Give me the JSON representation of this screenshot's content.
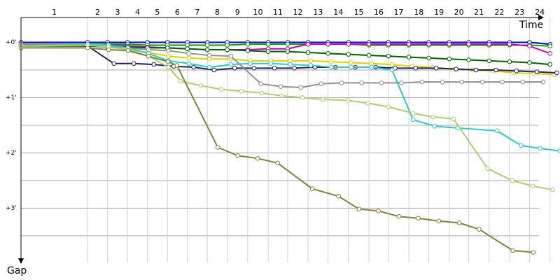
{
  "chart_data": {
    "type": "line",
    "x_axis_label": "Time",
    "y_axis_label": "Gap",
    "laps": [
      "1",
      "2",
      "3",
      "4",
      "5",
      "6",
      "7",
      "8",
      "9",
      "10",
      "11",
      "12",
      "13",
      "14",
      "15",
      "16",
      "17",
      "18",
      "19",
      "20",
      "21",
      "22",
      "23",
      "24"
    ],
    "lap_ends": [
      0,
      127,
      165,
      203,
      241,
      279,
      317,
      355,
      393,
      432,
      471,
      508,
      547,
      585,
      624,
      663,
      700,
      739,
      777,
      816,
      853,
      892,
      931,
      969,
      1008
    ],
    "xlim": [
      0,
      1027
    ],
    "ylim": [
      -27,
      239
    ],
    "yticks": [
      {
        "value": 0,
        "label": "+0'"
      },
      {
        "value": 60,
        "label": "+1'"
      },
      {
        "value": 120,
        "label": "+2'"
      },
      {
        "value": 180,
        "label": "+3'"
      }
    ],
    "ygrid": [
      0,
      30,
      60,
      90,
      120,
      150,
      180,
      210
    ],
    "series": [
      {
        "color": "#0000c0",
        "x": [
          0,
          127,
          165,
          203,
          241,
          279,
          317,
          355,
          393,
          432,
          471,
          508,
          547,
          585,
          624,
          663,
          700,
          739,
          777,
          816,
          853,
          892,
          931,
          969,
          1008
        ],
        "values": [
          0,
          0,
          0,
          0,
          0,
          0,
          0,
          0,
          0,
          0,
          0,
          0,
          0,
          0,
          0,
          0,
          0,
          0,
          0,
          0,
          0,
          0,
          0,
          0,
          2
        ]
      },
      {
        "color": "#00a000",
        "x": [
          0,
          127,
          165,
          203,
          241,
          279,
          317,
          355,
          393,
          432,
          471,
          508,
          547,
          585,
          624,
          663,
          700,
          739,
          777,
          816,
          853,
          892,
          931,
          969,
          1008
        ],
        "values": [
          2,
          2,
          2,
          2,
          3,
          3,
          3,
          3,
          3,
          2,
          2,
          2,
          2,
          2,
          2,
          3,
          3,
          3,
          3,
          3,
          3,
          3,
          3,
          3,
          4
        ]
      },
      {
        "color": "#c000c0",
        "x": [
          0,
          127,
          165,
          203,
          241,
          279,
          317,
          355,
          393,
          432,
          471,
          508,
          547,
          585,
          624,
          663,
          700,
          739,
          777,
          816,
          853,
          892,
          931,
          969,
          1008
        ],
        "values": [
          2,
          3,
          3,
          4,
          5,
          6,
          7,
          8,
          8,
          8,
          7,
          7,
          2,
          2,
          2,
          2,
          2,
          2,
          2,
          2,
          2,
          2,
          2,
          4,
          12
        ]
      },
      {
        "color": "#006000",
        "x": [
          0,
          127,
          165,
          203,
          241,
          279,
          317,
          355,
          393,
          432,
          471,
          508,
          547,
          585,
          624,
          663,
          700,
          739,
          777,
          816,
          853,
          892,
          931,
          969,
          1008
        ],
        "values": [
          4,
          4,
          5,
          5,
          6,
          6,
          7,
          8,
          8,
          9,
          10,
          10,
          11,
          12,
          13,
          14,
          15,
          16,
          17,
          18,
          19,
          20,
          21,
          22,
          24
        ]
      },
      {
        "color": "#e0d000",
        "x": [
          0,
          127,
          167,
          204,
          243,
          281,
          320,
          359,
          400,
          437,
          476,
          513,
          552,
          591,
          629,
          668,
          707,
          745,
          784,
          823,
          861,
          900,
          939,
          977,
          1016
        ],
        "values": [
          3,
          3,
          5,
          8,
          11,
          15,
          17,
          18,
          18,
          20,
          20,
          20,
          20,
          21,
          22,
          23,
          24,
          26,
          27,
          29,
          30,
          31,
          33,
          34,
          35
        ]
      },
      {
        "color": "#202060",
        "x": [
          0,
          127,
          177,
          215,
          253,
          291,
          329,
          368,
          407,
          444,
          483,
          521,
          560,
          599,
          637,
          676,
          713,
          752,
          791,
          829,
          867,
          905,
          944,
          983,
          1021
        ],
        "values": [
          2,
          4,
          23,
          23,
          24,
          26,
          27,
          30,
          28,
          28,
          28,
          28,
          27,
          27,
          27,
          27,
          28,
          28,
          28,
          29,
          30,
          30,
          31,
          32,
          33
        ]
      },
      {
        "color": "#909090",
        "x": [
          0,
          127,
          167,
          204,
          243,
          281,
          320,
          359,
          400,
          457,
          495,
          533,
          572,
          611,
          649,
          687,
          725,
          764,
          803,
          840,
          879,
          917,
          956,
          995
        ],
        "values": [
          2,
          2,
          4,
          6,
          8,
          9,
          12,
          14,
          15,
          45,
          48,
          49,
          45,
          44,
          44,
          44,
          44,
          43,
          43,
          43,
          43,
          43,
          43,
          43
        ]
      },
      {
        "color": "#30c8c8",
        "x": [
          0,
          127,
          167,
          204,
          243,
          281,
          320,
          359,
          400,
          437,
          476,
          513,
          552,
          591,
          629,
          668,
          707,
          747,
          788,
          832,
          907,
          953,
          989,
          1027
        ],
        "values": [
          4,
          2,
          3,
          6,
          12,
          20,
          23,
          27,
          24,
          23,
          23,
          24,
          25,
          27,
          27,
          27,
          30,
          84,
          91,
          93,
          96,
          112,
          115,
          118
        ]
      },
      {
        "color": "#a8d070",
        "x": [
          0,
          127,
          167,
          204,
          243,
          281,
          304,
          343,
          381,
          420,
          459,
          497,
          536,
          575,
          623,
          661,
          700,
          747,
          785,
          824,
          889,
          936,
          975,
          1013
        ],
        "values": [
          4,
          3,
          5,
          8,
          15,
          27,
          42,
          47,
          51,
          53,
          55,
          58,
          60,
          62,
          63,
          66,
          70,
          77,
          81,
          83,
          137,
          150,
          156,
          160
        ]
      },
      {
        "color": "#808040",
        "x": [
          0,
          127,
          167,
          204,
          243,
          280,
          297,
          375,
          413,
          451,
          489,
          555,
          605,
          644,
          681,
          720,
          757,
          796,
          835,
          873,
          937,
          976
        ],
        "values": [
          6,
          6,
          8,
          9,
          15,
          21,
          25,
          114,
          123,
          126,
          131,
          159,
          167,
          181,
          183,
          189,
          191,
          194,
          196,
          203,
          226,
          228
        ]
      }
    ]
  }
}
